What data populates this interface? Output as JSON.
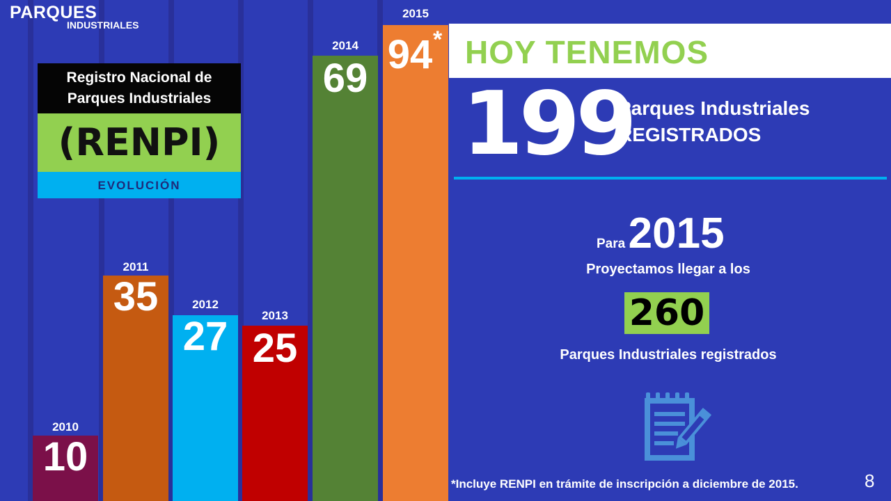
{
  "logo": {
    "line1": "PARQUES",
    "line2": "INDUSTRIALES"
  },
  "renpi": {
    "title": "Registro Nacional de Parques Industriales",
    "acronym": "(RENPI)",
    "subtitle": "EVOLUCIÓN"
  },
  "bars": [
    {
      "year": "2010",
      "value": "10",
      "color": "#7b1049"
    },
    {
      "year": "2011",
      "value": "35",
      "color": "#c55a11"
    },
    {
      "year": "2012",
      "value": "27",
      "color": "#00b0f0"
    },
    {
      "year": "2013",
      "value": "25",
      "color": "#c00000"
    },
    {
      "year": "2014",
      "value": "69",
      "color": "#548235"
    },
    {
      "year": "2015",
      "value": "94",
      "color": "#ed7d31"
    }
  ],
  "asterisk": "*",
  "hoy": {
    "heading": "HOY TENEMOS",
    "number": "199",
    "line1": "Parques Industriales",
    "line2": "REGISTRADOS"
  },
  "projection": {
    "para": "Para",
    "year": "2015",
    "text": "Proyectamos llegar a los",
    "number": "260",
    "label": "Parques Industriales registrados"
  },
  "footnote": "*Incluye RENPI en trámite de inscripción a diciembre de 2015.",
  "page_number": "8",
  "icons": {
    "document": "document-pencil-icon"
  },
  "colors": {
    "background": "#2d3bb5",
    "green": "#92d050",
    "cyan": "#00b0f0"
  }
}
